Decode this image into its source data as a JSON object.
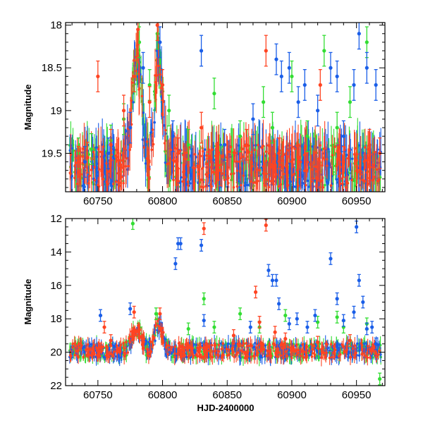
{
  "chart_data": [
    {
      "type": "scatter",
      "panel": "top",
      "title": "",
      "xlabel": "",
      "ylabel": "Magnitude",
      "xlim": [
        60725,
        60972
      ],
      "ylim": [
        19.95,
        17.97
      ],
      "y_inverted": true,
      "xticks": [
        60750,
        60800,
        60850,
        60900,
        60950
      ],
      "xtick_labels": [
        "60750",
        "60800",
        "60850",
        "60900",
        "60950"
      ],
      "yticks": [
        18,
        18.5,
        19,
        19.5
      ],
      "ytick_labels": [
        "18",
        "18.5",
        "19",
        "19.5"
      ],
      "series": [
        {
          "name": "green",
          "color": "#33dd33",
          "x": [
            60735,
            60745,
            60760,
            60770,
            60778,
            60782,
            60790,
            60796,
            60805,
            60820,
            60840,
            60860,
            60878,
            60885,
            60900,
            60912,
            60925,
            60935,
            60945,
            60958
          ],
          "y": [
            19.5,
            19.45,
            19.35,
            19.1,
            18.6,
            18.2,
            18.7,
            18.1,
            19.0,
            19.4,
            18.8,
            19.3,
            18.9,
            19.2,
            18.6,
            19.3,
            18.3,
            19.2,
            18.9,
            18.2
          ]
        },
        {
          "name": "blue",
          "color": "#1a5ee8",
          "x": [
            60740,
            60758,
            60775,
            60785,
            60798,
            60808,
            60830,
            60848,
            60870,
            60888,
            60892,
            60898,
            60905,
            60910,
            60920,
            60930,
            60935,
            60940,
            60948,
            60952,
            60958,
            60965
          ],
          "y": [
            19.6,
            19.5,
            19.2,
            18.5,
            18.2,
            19.3,
            18.3,
            19.4,
            19.1,
            18.4,
            18.6,
            18.5,
            18.9,
            18.7,
            19.0,
            18.5,
            18.6,
            19.3,
            18.7,
            18.1,
            18.5,
            18.7
          ]
        },
        {
          "name": "red",
          "color": "#ff4422",
          "x": [
            60735,
            60742,
            60750,
            60760,
            60770,
            60778,
            60781,
            60790,
            60796,
            60800,
            60812,
            60830,
            60845,
            60865,
            60880,
            60890,
            60905,
            60922,
            60940,
            60960,
            60968
          ],
          "y": [
            19.6,
            19.55,
            18.6,
            19.4,
            19.0,
            18.6,
            18.05,
            18.9,
            18.0,
            18.7,
            19.5,
            19.2,
            19.7,
            19.4,
            18.3,
            19.5,
            19.6,
            18.7,
            19.6,
            19.4,
            19.5
          ]
        }
      ]
    },
    {
      "type": "scatter",
      "panel": "bottom",
      "title": "",
      "xlabel": "HJD-2400000",
      "ylabel": "Magnitude",
      "xlim": [
        60725,
        60972
      ],
      "ylim": [
        22,
        12
      ],
      "y_inverted": true,
      "xticks": [
        60750,
        60800,
        60850,
        60900,
        60950
      ],
      "xtick_labels": [
        "60750",
        "60800",
        "60850",
        "60900",
        "60950"
      ],
      "yticks": [
        12,
        14,
        16,
        18,
        20,
        22
      ],
      "ytick_labels": [
        "12",
        "14",
        "16",
        "18",
        "20",
        "22"
      ],
      "series": [
        {
          "name": "green",
          "color": "#33dd33",
          "x": [
            60777,
            60795,
            60820,
            60832,
            60840,
            60860,
            60875,
            60895,
            60920,
            60935,
            60940,
            60958,
            60968
          ],
          "y": [
            12.3,
            17.7,
            18.6,
            16.8,
            18.5,
            17.7,
            18.5,
            17.8,
            18.2,
            17.9,
            18.5,
            18.3,
            21.6
          ]
        },
        {
          "name": "blue",
          "color": "#1a5ee8",
          "x": [
            60752,
            60775,
            60810,
            60812,
            60814,
            60830,
            60832,
            60868,
            60882,
            60885,
            60888,
            60890,
            60898,
            60904,
            60912,
            60918,
            60930,
            60935,
            60940,
            60948,
            60950,
            60952,
            60955,
            60958,
            60962,
            60965
          ],
          "y": [
            17.8,
            17.4,
            14.7,
            13.5,
            13.5,
            13.6,
            18.1,
            18.5,
            15.1,
            15.7,
            15.7,
            17.1,
            18.3,
            18.0,
            18.5,
            17.8,
            14.4,
            16.8,
            18.1,
            17.6,
            12.5,
            15.7,
            17.0,
            18.6,
            18.5,
            19.5
          ]
        },
        {
          "name": "red",
          "color": "#ff4422",
          "x": [
            60755,
            60760,
            60778,
            60798,
            60832,
            60855,
            60872,
            60875,
            60880,
            60887,
            60895,
            60920,
            60945
          ],
          "y": [
            18.5,
            19.3,
            17.6,
            17.7,
            12.6,
            19.0,
            16.4,
            18.2,
            12.4,
            18.8,
            19.2,
            19.4,
            19.3
          ]
        }
      ]
    }
  ]
}
